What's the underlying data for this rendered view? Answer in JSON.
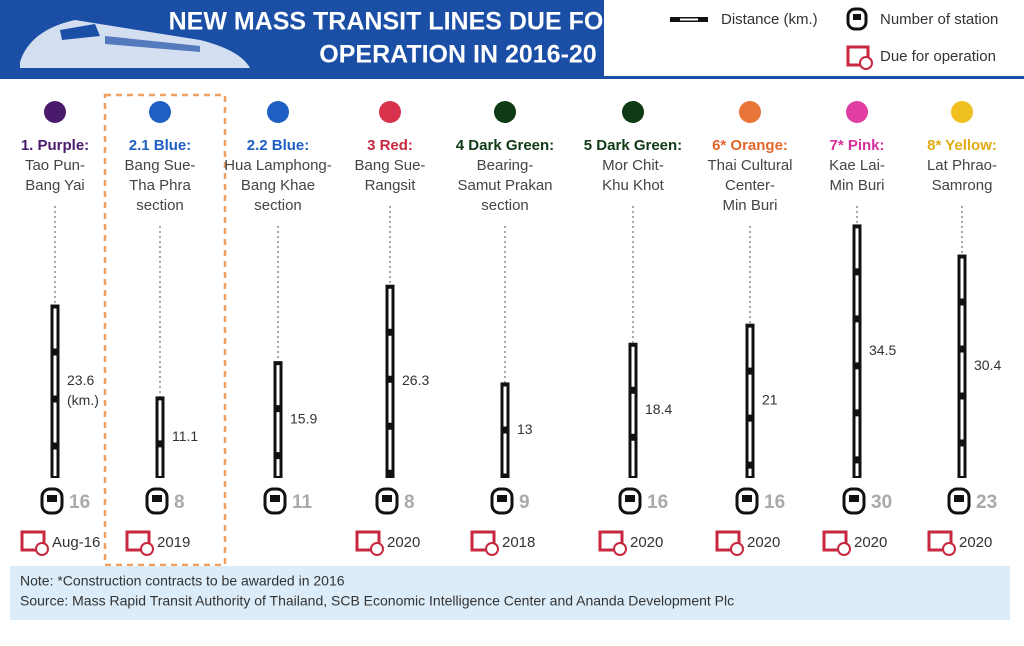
{
  "chart_data": {
    "type": "bar",
    "title": [
      "NEW MASS TRANSIT LINES DUE FOR",
      "OPERATION IN 2016-20"
    ],
    "legend": {
      "distance": "Distance (km.)",
      "stations": "Number of station",
      "due": "Due for operation"
    },
    "categories": [
      "1. Purple:",
      "2.1 Blue:",
      "2.2 Blue:",
      "3 Red:",
      "4 Dark Green:",
      "5 Dark Green:",
      "6* Orange:",
      "7* Pink:",
      "8* Yellow:"
    ],
    "descriptions": [
      [
        "Tao Pun-",
        "Bang Yai"
      ],
      [
        "Bang Sue-",
        "Tha Phra",
        "section"
      ],
      [
        "Hua Lamphong-",
        "Bang Khae",
        "section"
      ],
      [
        "Bang Sue-",
        "Rangsit"
      ],
      [
        "Bearing-",
        "Samut Prakan",
        "section"
      ],
      [
        "Mor Chit-",
        "Khu Khot"
      ],
      [
        "Thai Cultural",
        "Center-",
        "Min Buri"
      ],
      [
        "Kae Lai-",
        "Min Buri"
      ],
      [
        "Lat Phrao-",
        "Samrong"
      ]
    ],
    "colors": [
      "#4a1a6c",
      "#1f5fc4",
      "#1f5fc4",
      "#d8314c",
      "#0f3a16",
      "#0f3a16",
      "#e8743a",
      "#e03ea0",
      "#f0c020"
    ],
    "label_colors": [
      "#4a1a6c",
      "#1f5fc4",
      "#1f5fc4",
      "#c8283f",
      "#0f3a16",
      "#0f3a16",
      "#e0662a",
      "#d8309a",
      "#e0aa10"
    ],
    "values": [
      23.6,
      11.1,
      15.9,
      26.3,
      13,
      18.4,
      21,
      34.5,
      30.4
    ],
    "value_labels": [
      [
        "23.6",
        "(km.)"
      ],
      [
        "11.1"
      ],
      [
        "15.9"
      ],
      [
        "26.3"
      ],
      [
        "13"
      ],
      [
        "18.4"
      ],
      [
        "21"
      ],
      [
        "34.5"
      ],
      [
        "30.4"
      ]
    ],
    "stations": [
      16,
      8,
      11,
      8,
      9,
      16,
      16,
      30,
      23
    ],
    "due": [
      "Aug-16",
      "2019",
      "",
      "2020",
      "2018",
      "2020",
      "2020",
      "2020",
      "2020"
    ],
    "note": "Note: *Construction contracts to be awarded in 2016",
    "source": "Source: Mass Rapid Transit Authority of Thailand, SCB Economic Intelligence Center and Ananda Development Plc"
  }
}
